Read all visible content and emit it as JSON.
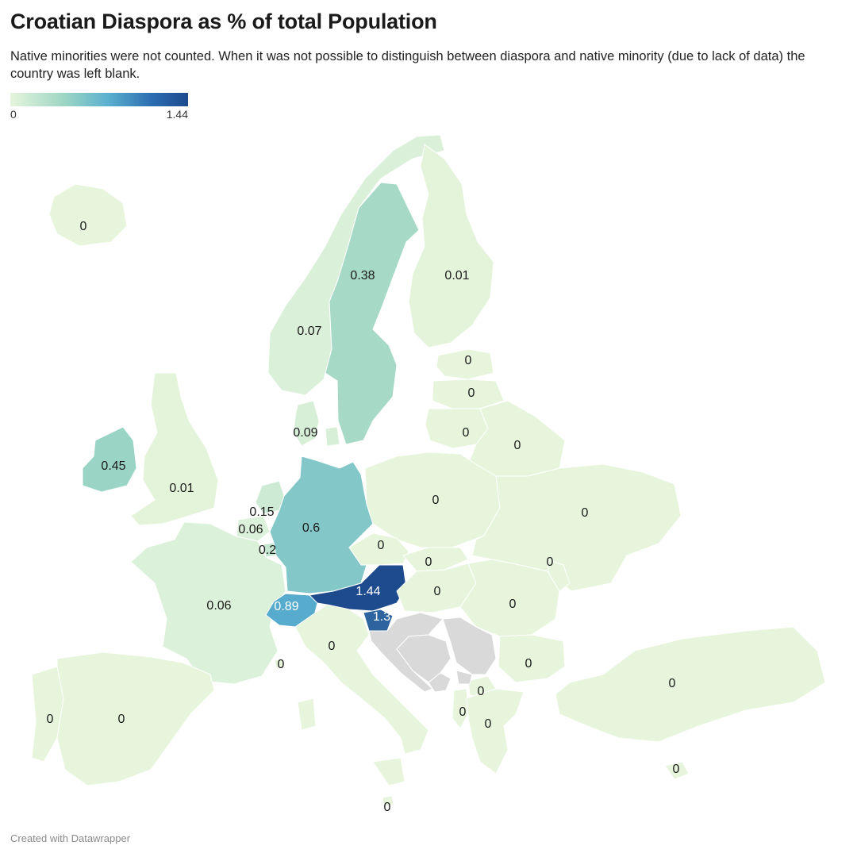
{
  "title": "Croatian Diaspora as % of total Population",
  "subtitle": "Native minorities were not counted. When it was not possible to distinguish between diaspora and native minority (due to lack of data) the country was left blank.",
  "legend": {
    "min": "0",
    "max": "1.44"
  },
  "colors": {
    "scale_low": "#e6f5dc",
    "scale_mid1": "#9dd6c4",
    "scale_mid2": "#5ab0cf",
    "scale_high": "#1e4a8e",
    "no_data": "#d9d9d9",
    "border": "#ffffff"
  },
  "countries": [
    {
      "name": "Iceland",
      "value": 0,
      "label": "0"
    },
    {
      "name": "Norway",
      "value": 0.07,
      "label": "0.07"
    },
    {
      "name": "Sweden",
      "value": 0.38,
      "label": "0.38"
    },
    {
      "name": "Finland",
      "value": 0.01,
      "label": "0.01"
    },
    {
      "name": "Estonia",
      "value": 0,
      "label": "0"
    },
    {
      "name": "Latvia",
      "value": 0,
      "label": "0"
    },
    {
      "name": "Lithuania",
      "value": 0,
      "label": "0"
    },
    {
      "name": "Belarus",
      "value": 0,
      "label": "0"
    },
    {
      "name": "Denmark",
      "value": 0.09,
      "label": "0.09"
    },
    {
      "name": "Ireland",
      "value": 0.45,
      "label": "0.45"
    },
    {
      "name": "United Kingdom",
      "value": 0.01,
      "label": "0.01"
    },
    {
      "name": "Netherlands",
      "value": 0.15,
      "label": "0.15"
    },
    {
      "name": "Belgium",
      "value": 0.06,
      "label": "0.06"
    },
    {
      "name": "Luxembourg",
      "value": 0.2,
      "label": "0.2"
    },
    {
      "name": "Germany",
      "value": 0.6,
      "label": "0.6"
    },
    {
      "name": "Poland",
      "value": 0,
      "label": "0"
    },
    {
      "name": "Ukraine",
      "value": 0,
      "label": "0"
    },
    {
      "name": "Czechia",
      "value": 0,
      "label": "0"
    },
    {
      "name": "Slovakia",
      "value": 0,
      "label": "0"
    },
    {
      "name": "Moldova",
      "value": 0,
      "label": "0"
    },
    {
      "name": "France",
      "value": 0.06,
      "label": "0.06"
    },
    {
      "name": "Switzerland",
      "value": 0.89,
      "label": "0.89"
    },
    {
      "name": "Austria",
      "value": 1.44,
      "label": "1.44"
    },
    {
      "name": "Slovenia",
      "value": 1.3,
      "label": "1.3"
    },
    {
      "name": "Hungary",
      "value": 0,
      "label": "0"
    },
    {
      "name": "Romania",
      "value": 0,
      "label": "0"
    },
    {
      "name": "Italy",
      "value": 0,
      "label": "0"
    },
    {
      "name": "Monaco",
      "value": 0,
      "label": "0"
    },
    {
      "name": "Bulgaria",
      "value": 0,
      "label": "0"
    },
    {
      "name": "North Macedonia",
      "value": 0,
      "label": "0"
    },
    {
      "name": "Albania",
      "value": 0,
      "label": "0"
    },
    {
      "name": "Greece",
      "value": 0,
      "label": "0"
    },
    {
      "name": "Turkey",
      "value": 0,
      "label": "0"
    },
    {
      "name": "Cyprus",
      "value": 0,
      "label": "0"
    },
    {
      "name": "Portugal",
      "value": 0,
      "label": "0"
    },
    {
      "name": "Spain",
      "value": 0,
      "label": "0"
    },
    {
      "name": "Malta",
      "value": 0,
      "label": "0"
    },
    {
      "name": "Croatia",
      "value": null,
      "label": ""
    },
    {
      "name": "Bosnia and Herzegovina",
      "value": null,
      "label": ""
    },
    {
      "name": "Serbia",
      "value": null,
      "label": ""
    },
    {
      "name": "Montenegro",
      "value": null,
      "label": ""
    },
    {
      "name": "Kosovo",
      "value": null,
      "label": ""
    }
  ],
  "credit": "Created with Datawrapper"
}
